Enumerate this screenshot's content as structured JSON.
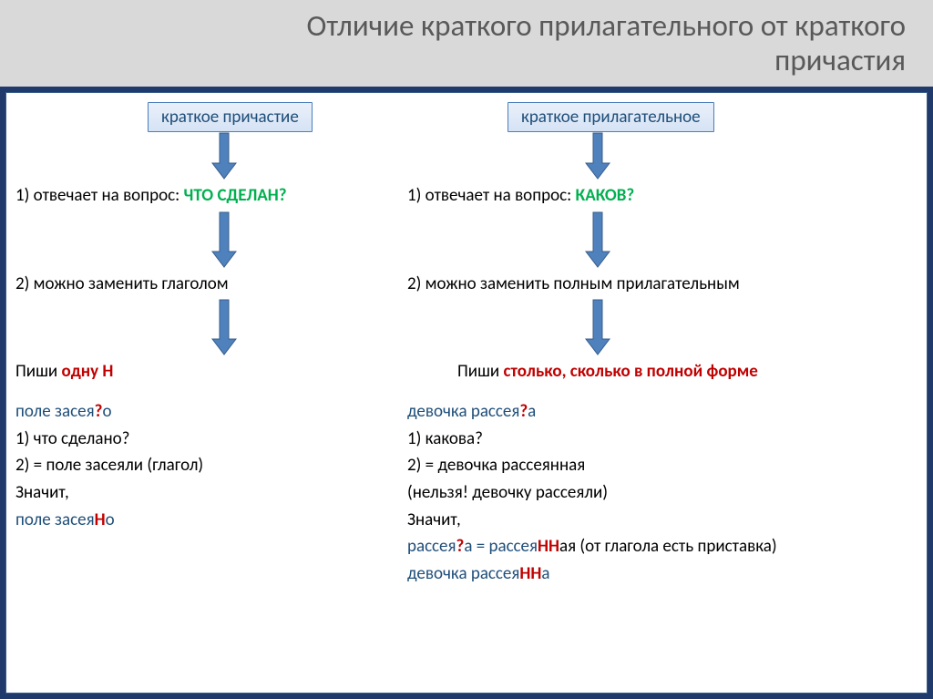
{
  "title": "Отличие краткого прилагательного от краткого\nпричастия",
  "left": {
    "box": "краткое причастие",
    "q1_prefix": "1) отвечает на вопрос: ",
    "q1_green": "ЧТО СДЕЛАН?",
    "q2": "2) можно заменить глаголом",
    "rule_prefix": "Пиши ",
    "rule_red": "одну Н",
    "ex_head_a": "поле засея",
    "ex_head_q": "?",
    "ex_head_b": "о",
    "ex1": "1)   что сделано?",
    "ex2": "2)   = поле засеяли (глагол)",
    "ex3": "Значит,",
    "ex4_a": "поле засея",
    "ex4_n": "Н",
    "ex4_b": "о"
  },
  "right": {
    "box": "краткое прилагательное",
    "q1_prefix": "1) отвечает на вопрос: ",
    "q1_green": "КАКОВ?",
    "q2": "2) можно заменить полным прилагательным",
    "rule_prefix": "Пиши ",
    "rule_red": "столько, сколько в полной форме",
    "ex_head_a": "девочка рассея",
    "ex_head_q": "?",
    "ex_head_b": "а",
    "ex1": "1)   какова?",
    "ex2": "2)   = девочка рассеянная",
    "ex3": "(нельзя!  девочку рассеяли)",
    "ex4": "Значит,",
    "ex5_a": "рассея",
    "ex5_q": "?",
    "ex5_b": "а = рассея",
    "ex5_n": "НН",
    "ex5_c": "ая (от глагола есть приставка)",
    "ex6_a": "девочка рассея",
    "ex6_n": "НН",
    "ex6_b": "а"
  },
  "colors": {
    "page_bg": "#1f3a6b",
    "header_bg": "#d9d9d9",
    "header_text": "#595959",
    "content_bg": "#ffffff",
    "content_border": "#385d8a",
    "box_border": "#4a7ebb",
    "box_text": "#1f4e79",
    "arrow_fill": "#4f81bd",
    "arrow_stroke": "#385d8a",
    "green": "#00b050",
    "red": "#c00000",
    "blue": "#1f4e79",
    "black": "#000000"
  },
  "arrow": {
    "width": 28,
    "height": 52,
    "shaft_width": 11,
    "head_width": 26,
    "head_height": 18
  }
}
